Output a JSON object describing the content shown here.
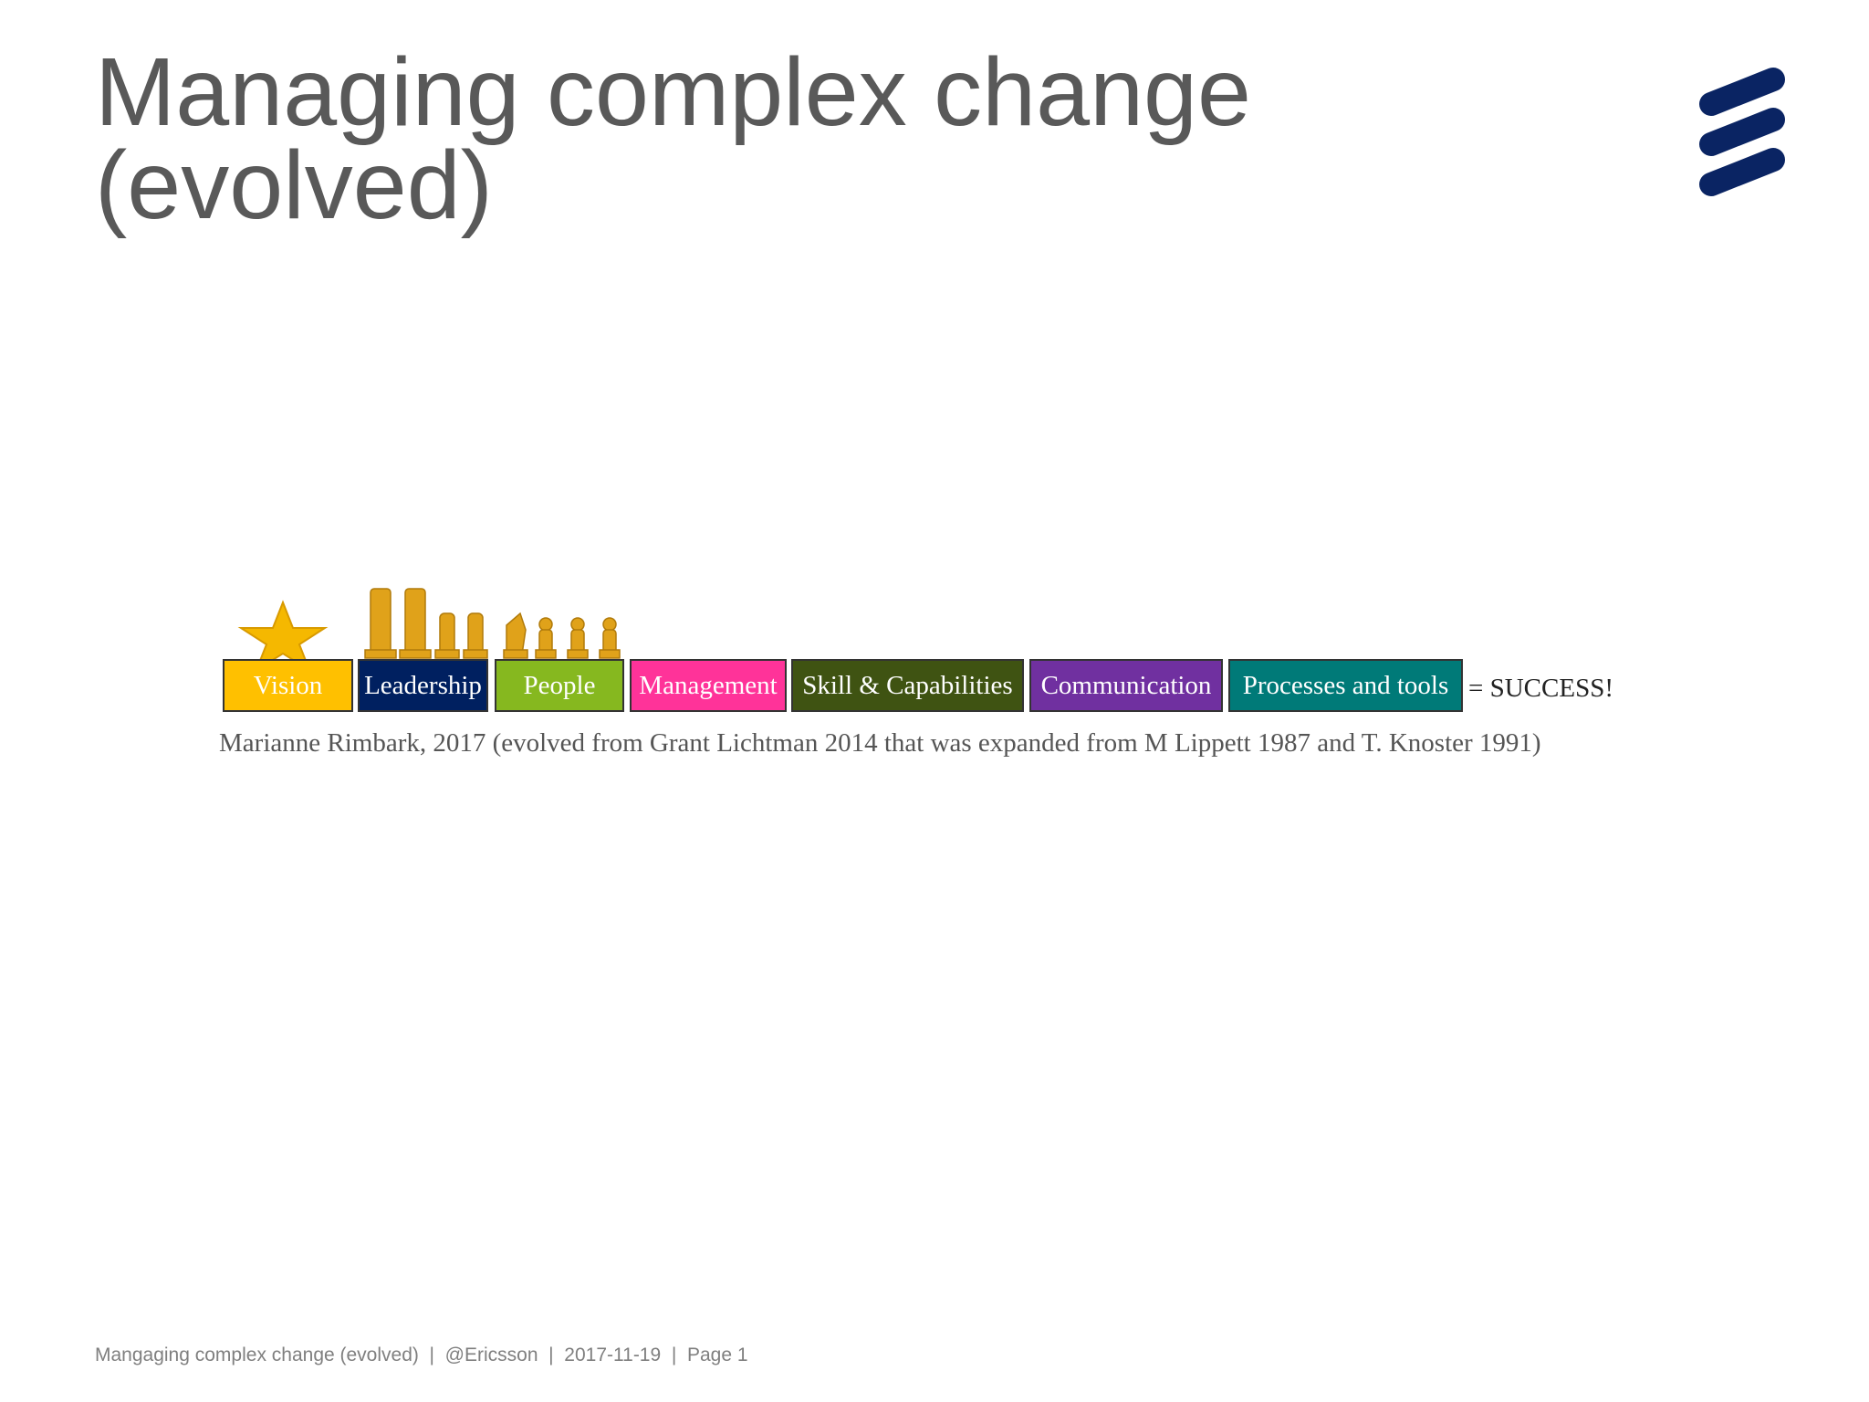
{
  "header": {
    "title": "Managing complex change (evolved)"
  },
  "diagram": {
    "boxes": [
      {
        "label": "Vision",
        "color": "#ffc000"
      },
      {
        "label": "Leadership",
        "color": "#002060"
      },
      {
        "label": "People",
        "color": "#86b81f"
      },
      {
        "label": "Management",
        "color": "#ff3399"
      },
      {
        "label": "Skill & Capabilities",
        "color": "#3f5312"
      },
      {
        "label": "Communication",
        "color": "#7030a0"
      },
      {
        "label": "Processes and tools",
        "color": "#007a78"
      }
    ],
    "result": "= SUCCESS!",
    "citation": "Marianne Rimbark, 2017 (evolved from Grant Lichtman 2014 that was expanded from M Lippett 1987 and T. Knoster 1991)"
  },
  "footer": {
    "text": "Mangaging complex change (evolved)  |  @Ericsson  |  2017-11-19  |  Page 1"
  }
}
